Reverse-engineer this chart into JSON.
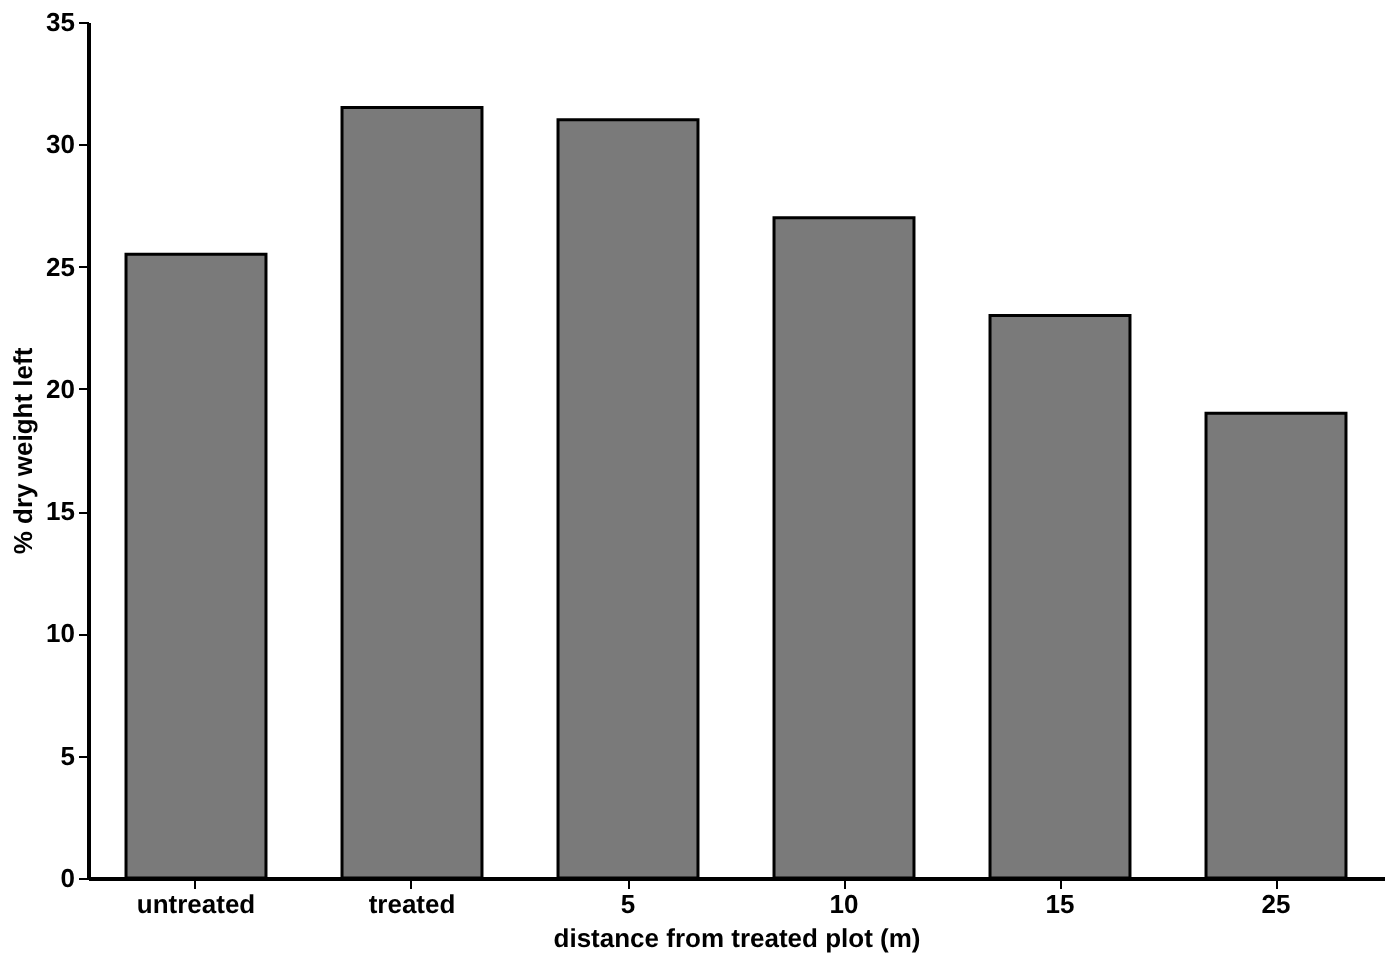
{
  "chart_data": {
    "type": "bar",
    "xlabel": "distance from treated plot (m)",
    "ylabel": "% dry weight left",
    "categories": [
      "untreated",
      "treated",
      "5",
      "10",
      "15",
      "25"
    ],
    "values": [
      25.5,
      31.5,
      31,
      27,
      23,
      19
    ],
    "color": "#7a7a7a",
    "ylim": [
      0,
      35
    ],
    "yticks": [
      0,
      5,
      10,
      15,
      20,
      25,
      30,
      35
    ],
    "grid": false
  }
}
